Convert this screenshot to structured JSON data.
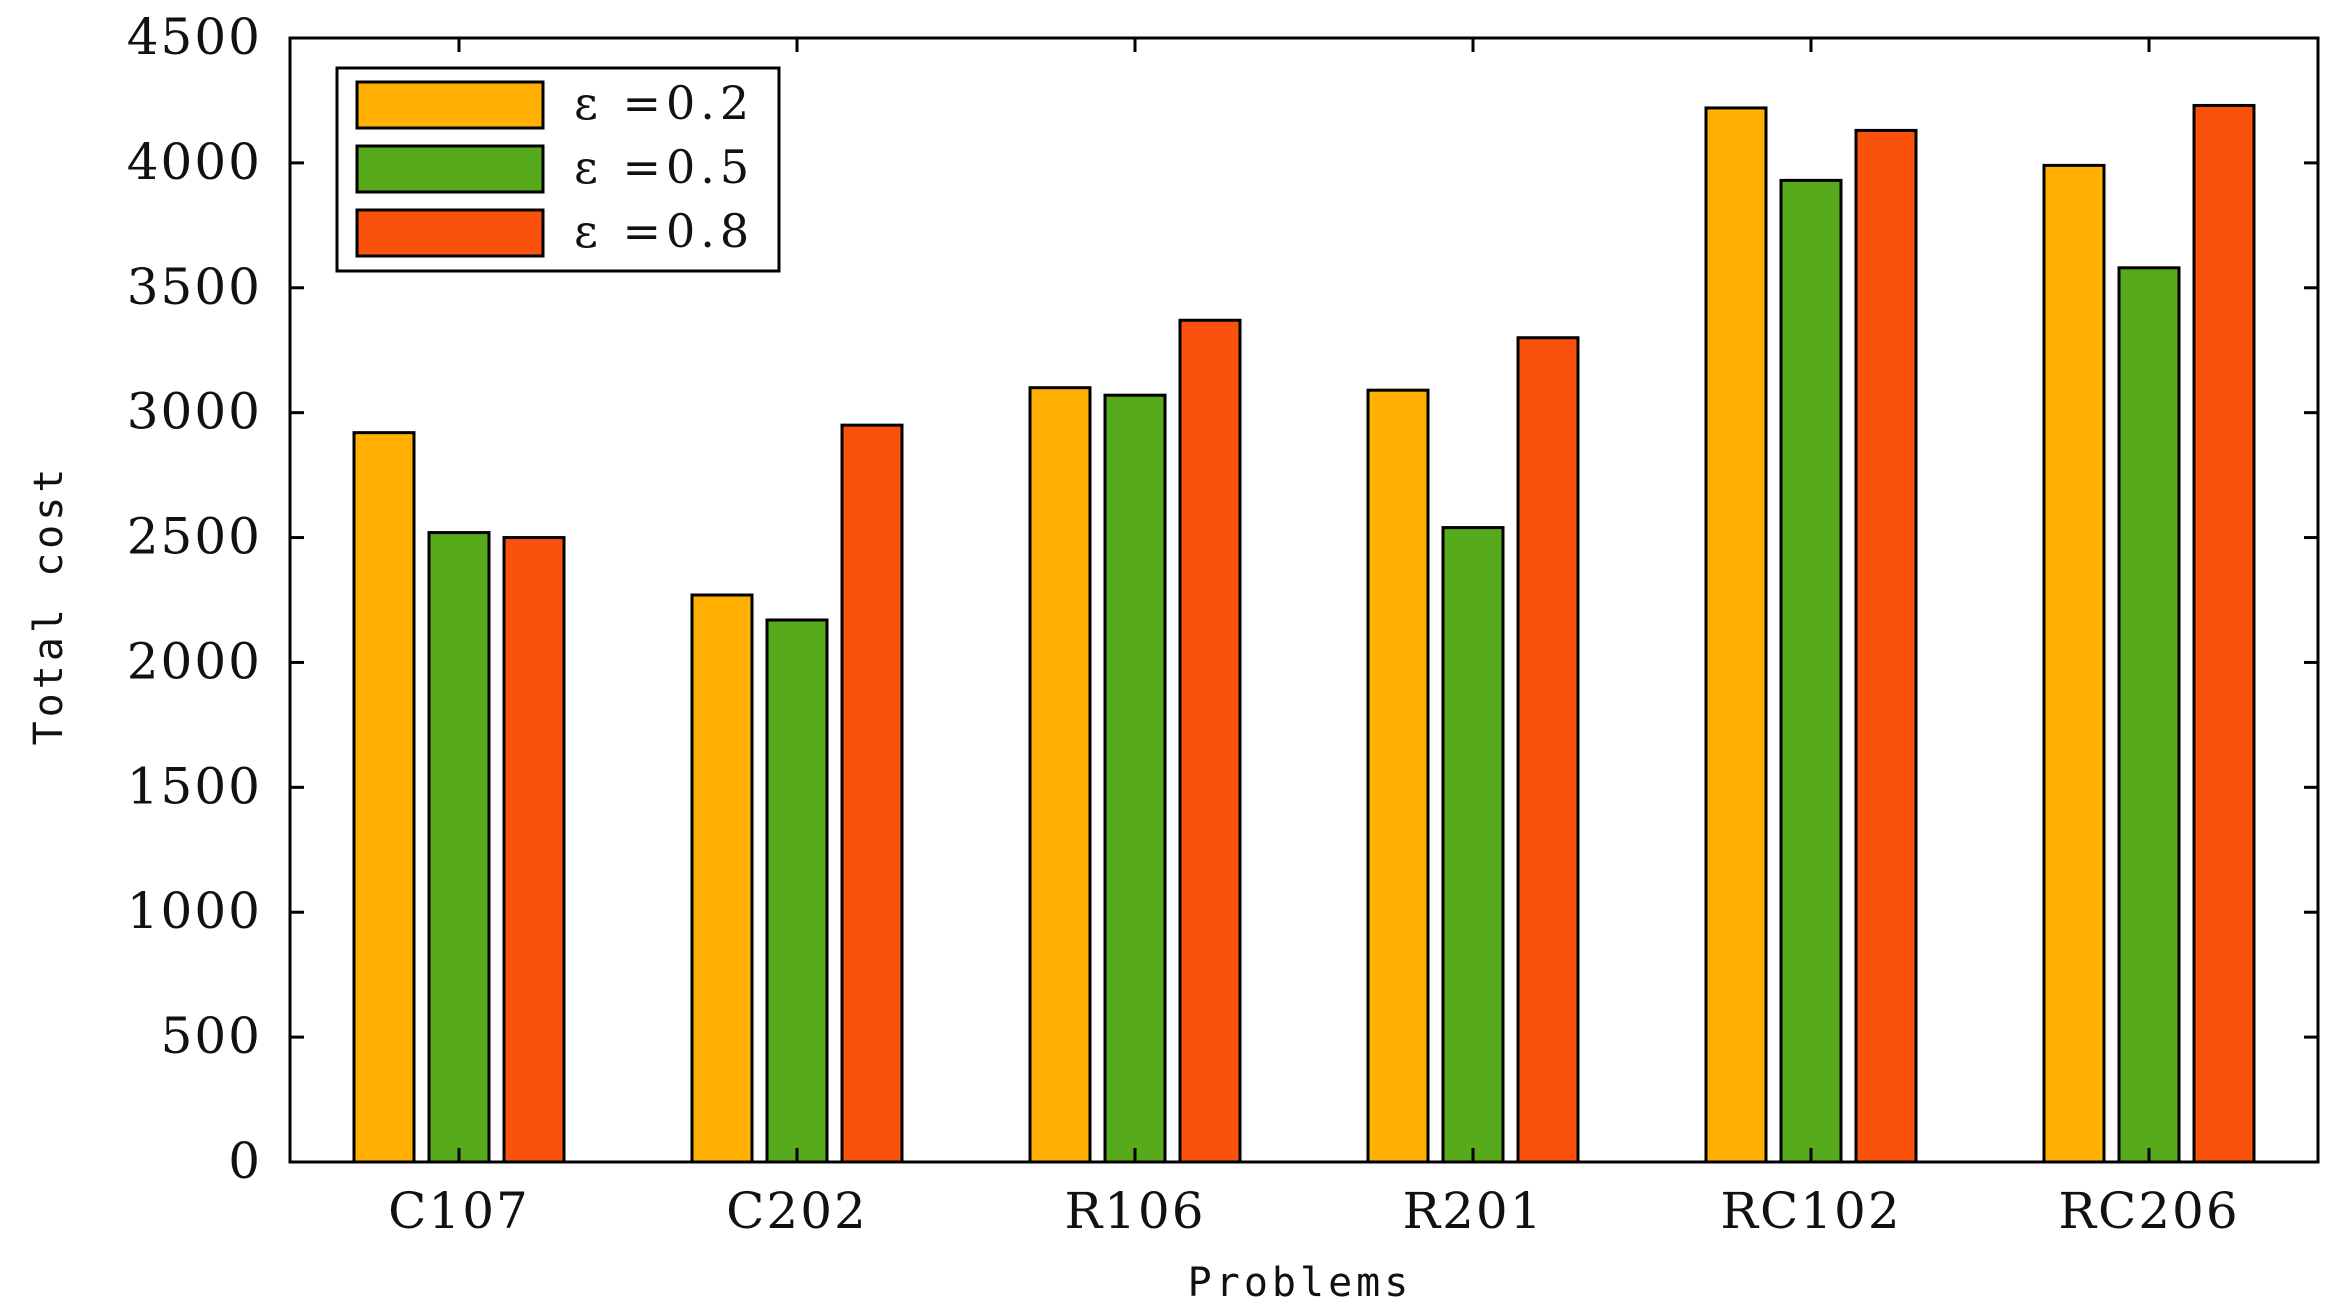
{
  "chart_data": {
    "type": "bar",
    "title": "",
    "xlabel": "Problems",
    "ylabel": "Total cost",
    "categories": [
      "C107",
      "C202",
      "R106",
      "R201",
      "RC102",
      "RC206"
    ],
    "series": [
      {
        "name": "ε =0.2",
        "color": "#FFB000",
        "values": [
          2920,
          2270,
          3100,
          3090,
          4220,
          3990
        ]
      },
      {
        "name": "ε =0.5",
        "color": "#56AA1C",
        "values": [
          2520,
          2170,
          3070,
          2540,
          3930,
          3580
        ]
      },
      {
        "name": "ε =0.8",
        "color": "#FA520D",
        "values": [
          2500,
          2950,
          3370,
          3300,
          4130,
          4230
        ]
      }
    ],
    "ylim": [
      0,
      4500
    ],
    "yticks": [
      0,
      500,
      1000,
      1500,
      2000,
      2500,
      3000,
      3500,
      4000,
      4500
    ],
    "ytick_labels": [
      "0",
      "500",
      "1000",
      "1500",
      "2000",
      "2500",
      "3000",
      "3500",
      "4000",
      "4500"
    ],
    "grid": false,
    "legend": "top-left"
  }
}
